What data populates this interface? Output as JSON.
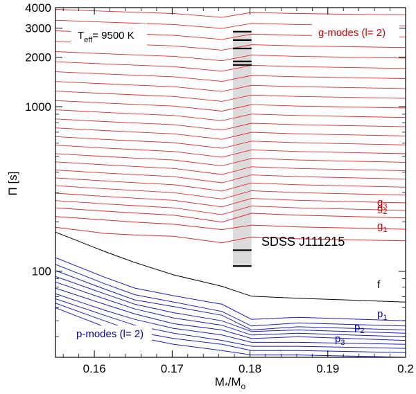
{
  "chart_data": {
    "type": "line",
    "xlabel_main": "M",
    "xlabel_sub1": "*",
    "xlabel_mid": "/M",
    "xlabel_sub2": "o",
    "ylabel": "Π [s]",
    "xlim": [
      0.155,
      0.2
    ],
    "ylim": [
      30,
      4000
    ],
    "yscale": "log",
    "x_ticks": [
      0.16,
      0.17,
      0.18,
      0.19,
      0.2
    ],
    "x_tick_labels": [
      "0.16",
      "0.17",
      "0.18",
      "0.19",
      "0.2"
    ],
    "y_ticks": [
      100,
      1000,
      2000,
      3000,
      4000
    ],
    "y_tick_labels": [
      "100",
      "1000",
      "2000",
      "3000",
      "4000"
    ],
    "annotations": {
      "teff_main": "T",
      "teff_sub": "eff",
      "teff_value": "= 9500 K",
      "g_modes": "g-modes (l= 2)",
      "p_modes": "p-modes (l= 2)",
      "object": "SDSS J111215",
      "g1": "g",
      "g1_sub": "1",
      "g2": "g",
      "g2_sub": "2",
      "g3": "g",
      "g3_sub": "3",
      "f": "f",
      "p1": "p",
      "p1_sub": "1",
      "p2": "p",
      "p2_sub": "2",
      "p3": "p",
      "p3_sub": "3"
    },
    "observed_band": {
      "x_range": [
        0.1778,
        0.1802
      ],
      "y_range": [
        107,
        2800
      ]
    },
    "observed_periods": [
      107.56,
      134.275,
      1792.905,
      1884.599,
      2258.528,
      2539.695,
      2855.728
    ],
    "x": [
      0.155,
      0.1613,
      0.1652,
      0.1702,
      0.1764,
      0.1802,
      0.1862,
      0.2
    ],
    "series": [
      {
        "name": "p-modes-low-4",
        "kind": "p",
        "values": [
          60,
          46,
          40,
          36,
          33,
          31,
          31,
          30
        ]
      },
      {
        "name": "p-modes-low-3",
        "kind": "p",
        "values": [
          64,
          50,
          43,
          39,
          36,
          33,
          33,
          32
        ]
      },
      {
        "name": "p-modes-low-2",
        "kind": "p",
        "values": [
          68,
          54,
          47,
          42,
          38,
          35,
          35,
          34
        ]
      },
      {
        "name": "p-modes-low-1",
        "kind": "p",
        "values": [
          73,
          58,
          51,
          45,
          41,
          37,
          37,
          36
        ]
      },
      {
        "name": "p6",
        "kind": "p",
        "values": [
          79,
          63,
          55,
          48,
          44,
          39,
          40,
          38
        ]
      },
      {
        "name": "p5",
        "kind": "p",
        "values": [
          86,
          68,
          59,
          52,
          47,
          41,
          42,
          40
        ]
      },
      {
        "name": "p4",
        "kind": "p",
        "values": [
          93,
          73,
          63,
          56,
          50,
          43,
          44,
          42
        ]
      },
      {
        "name": "p3",
        "kind": "p",
        "values": [
          101,
          78,
          67,
          61,
          54,
          44,
          46,
          44
        ]
      },
      {
        "name": "p2",
        "kind": "p",
        "values": [
          110,
          84,
          72,
          65,
          57,
          46.5,
          48.5,
          46.5
        ]
      },
      {
        "name": "p1",
        "kind": "p",
        "values": [
          121,
          92,
          79,
          71,
          63,
          51,
          52.5,
          50
        ]
      },
      {
        "name": "f",
        "kind": "f",
        "values": [
          173,
          132,
          113,
          95,
          81,
          70.5,
          68.5,
          65
        ]
      },
      {
        "name": "g1",
        "kind": "g",
        "values": [
          185,
          170,
          166,
          163,
          149,
          161.5,
          157.5,
          153
        ]
      },
      {
        "name": "g2",
        "kind": "g",
        "values": [
          215,
          205,
          199,
          193,
          179,
          190.8,
          186,
          180
        ]
      },
      {
        "name": "g3",
        "kind": "g",
        "values": [
          243,
          232,
          226,
          219,
          199,
          225,
          219,
          211
        ]
      }
    ],
    "g_overtones": {
      "base_period": 243,
      "spacing_factor": 1.105,
      "count": 60,
      "final_slope": -0.04
    }
  }
}
